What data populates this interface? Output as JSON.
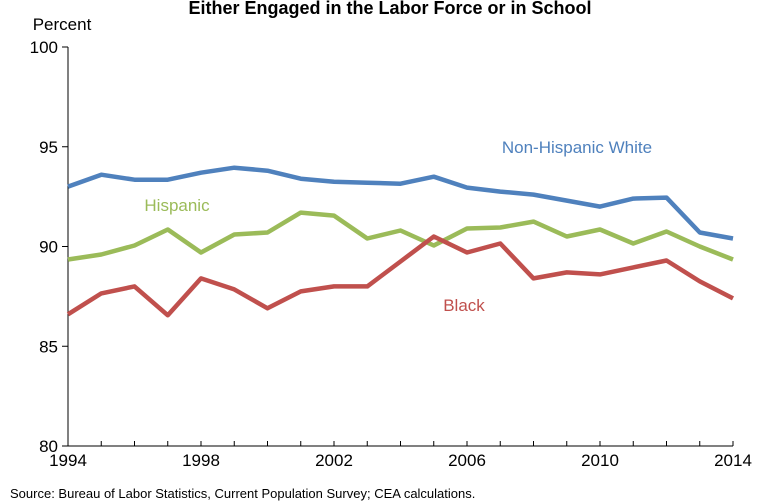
{
  "chart_data": {
    "type": "line",
    "title": "Either Engaged in the Labor Force or in School",
    "y_unit_label": "Percent",
    "ylim": [
      80,
      100
    ],
    "y_ticks": [
      80,
      85,
      90,
      95,
      100
    ],
    "xlim": [
      1994,
      2014
    ],
    "x_ticks": [
      1994,
      1998,
      2002,
      2006,
      2010,
      2014
    ],
    "grid": false,
    "x": [
      1994,
      1995,
      1996,
      1997,
      1998,
      1999,
      2000,
      2001,
      2002,
      2003,
      2004,
      2005,
      2006,
      2007,
      2008,
      2009,
      2010,
      2011,
      2012,
      2013,
      2014
    ],
    "series": [
      {
        "name": "Non-Hispanic White",
        "color": "#4f81bd",
        "values": [
          93.0,
          93.6,
          93.35,
          93.35,
          93.7,
          93.95,
          93.8,
          93.4,
          93.25,
          93.2,
          93.15,
          93.5,
          92.95,
          92.75,
          92.6,
          92.3,
          92.0,
          92.4,
          92.45,
          90.7,
          90.4
        ]
      },
      {
        "name": "Hispanic",
        "color": "#9bbb59",
        "values": [
          89.35,
          89.6,
          90.05,
          90.85,
          89.7,
          90.6,
          90.7,
          91.7,
          91.55,
          90.4,
          90.8,
          90.05,
          90.9,
          90.95,
          91.25,
          90.5,
          90.85,
          90.15,
          90.75,
          90.0,
          89.35
        ]
      },
      {
        "name": "Black",
        "color": "#c0504d",
        "values": [
          86.6,
          87.65,
          88.0,
          86.55,
          88.4,
          87.85,
          86.9,
          87.75,
          88.0,
          88.0,
          89.25,
          90.5,
          89.7,
          90.15,
          88.4,
          88.7,
          88.6,
          88.95,
          89.3,
          88.25,
          87.4
        ]
      }
    ],
    "source": "Source: Bureau of Labor Statistics, Current Population Survey; CEA calculations."
  }
}
